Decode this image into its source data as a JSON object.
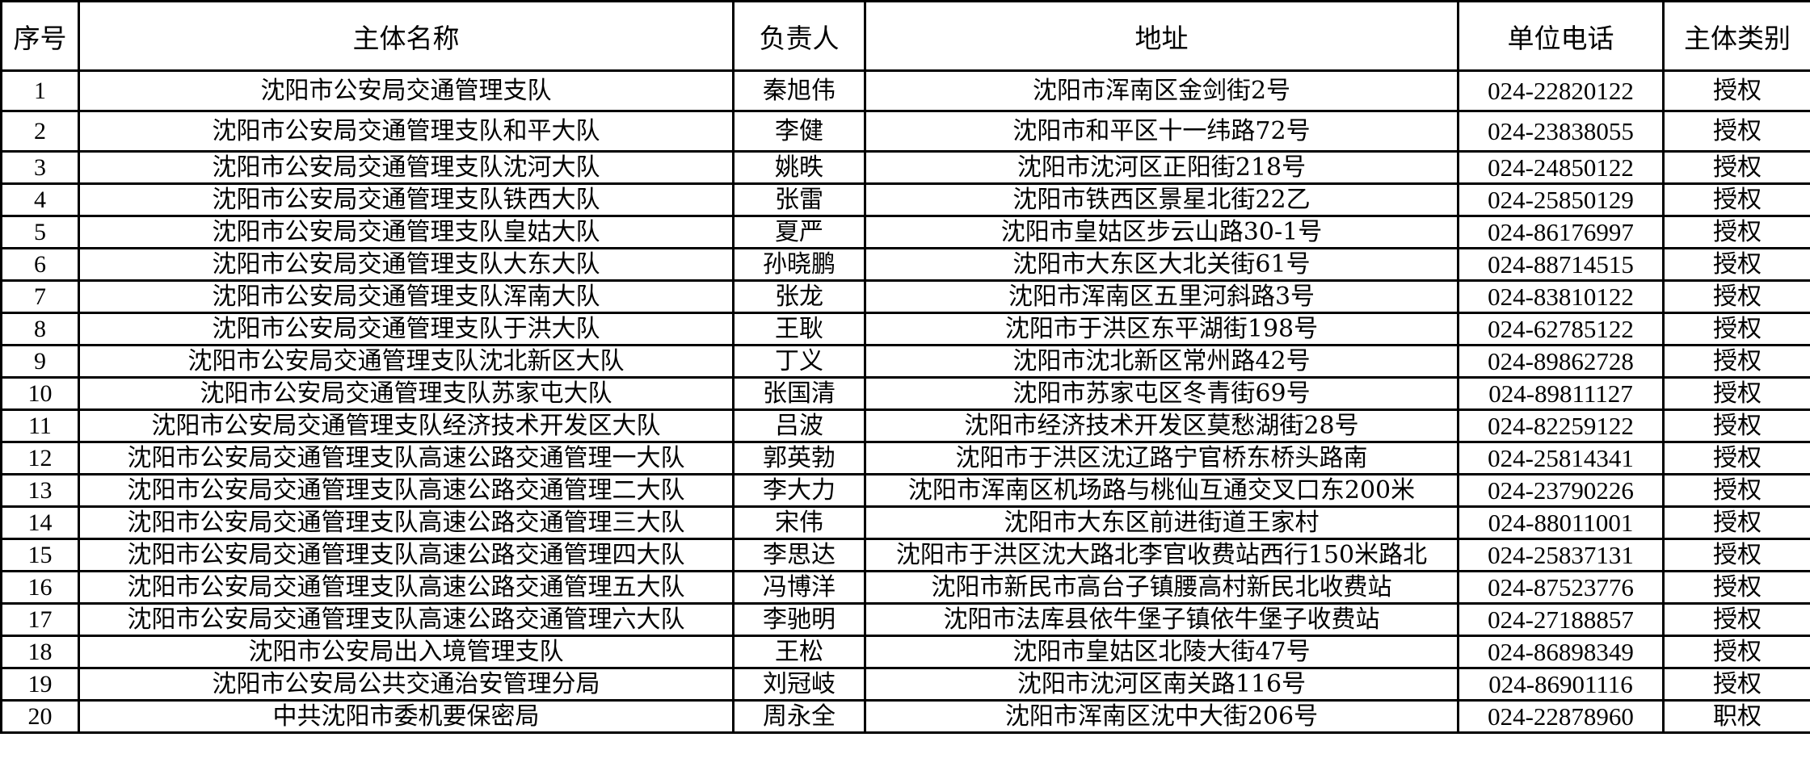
{
  "table": {
    "headers": [
      "序号",
      "主体名称",
      "负责人",
      "地址",
      "单位电话",
      "主体类别"
    ],
    "rows": [
      [
        "1",
        "沈阳市公安局交通管理支队",
        "秦旭伟",
        "沈阳市浑南区金剑街2号",
        "024-22820122",
        "授权"
      ],
      [
        "2",
        "沈阳市公安局交通管理支队和平大队",
        "李健",
        "沈阳市和平区十一纬路72号",
        "024-23838055",
        "授权"
      ],
      [
        "3",
        "沈阳市公安局交通管理支队沈河大队",
        "姚昳",
        "沈阳市沈河区正阳街218号",
        "024-24850122",
        "授权"
      ],
      [
        "4",
        "沈阳市公安局交通管理支队铁西大队",
        "张雷",
        "沈阳市铁西区景星北街22乙",
        "024-25850129",
        "授权"
      ],
      [
        "5",
        "沈阳市公安局交通管理支队皇姑大队",
        "夏严",
        "沈阳市皇姑区步云山路30-1号",
        "024-86176997",
        "授权"
      ],
      [
        "6",
        "沈阳市公安局交通管理支队大东大队",
        "孙晓鹏",
        "沈阳市大东区大北关街61号",
        "024-88714515",
        "授权"
      ],
      [
        "7",
        "沈阳市公安局交通管理支队浑南大队",
        "张龙",
        "沈阳市浑南区五里河斜路3号",
        "024-83810122",
        "授权"
      ],
      [
        "8",
        "沈阳市公安局交通管理支队于洪大队",
        "王耿",
        "沈阳市于洪区东平湖街198号",
        "024-62785122",
        "授权"
      ],
      [
        "9",
        "沈阳市公安局交通管理支队沈北新区大队",
        "丁义",
        "沈阳市沈北新区常州路42号",
        "024-89862728",
        "授权"
      ],
      [
        "10",
        "沈阳市公安局交通管理支队苏家屯大队",
        "张国清",
        "沈阳市苏家屯区冬青街69号",
        "024-89811127",
        "授权"
      ],
      [
        "11",
        "沈阳市公安局交通管理支队经济技术开发区大队",
        "吕波",
        "沈阳市经济技术开发区莫愁湖街28号",
        "024-82259122",
        "授权"
      ],
      [
        "12",
        "沈阳市公安局交通管理支队高速公路交通管理一大队",
        "郭英勃",
        "沈阳市于洪区沈辽路宁官桥东桥头路南",
        "024-25814341",
        "授权"
      ],
      [
        "13",
        "沈阳市公安局交通管理支队高速公路交通管理二大队",
        "李大力",
        "沈阳市浑南区机场路与桃仙互通交叉口东200米",
        "024-23790226",
        "授权"
      ],
      [
        "14",
        "沈阳市公安局交通管理支队高速公路交通管理三大队",
        "宋伟",
        "沈阳市大东区前进街道王家村",
        "024-88011001",
        "授权"
      ],
      [
        "15",
        "沈阳市公安局交通管理支队高速公路交通管理四大队",
        "李思达",
        "沈阳市于洪区沈大路北李官收费站西行150米路北",
        "024-25837131",
        "授权"
      ],
      [
        "16",
        "沈阳市公安局交通管理支队高速公路交通管理五大队",
        "冯博洋",
        "沈阳市新民市高台子镇腰高村新民北收费站",
        "024-87523776",
        "授权"
      ],
      [
        "17",
        "沈阳市公安局交通管理支队高速公路交通管理六大队",
        "李驰明",
        "沈阳市法库县依牛堡子镇依牛堡子收费站",
        "024-27188857",
        "授权"
      ],
      [
        "18",
        "沈阳市公安局出入境管理支队",
        "王松",
        "沈阳市皇姑区北陵大街47号",
        "024-86898349",
        "授权"
      ],
      [
        "19",
        "沈阳市公安局公共交通治安管理分局",
        "刘冠岐",
        "沈阳市沈河区南关路116号",
        "024-86901116",
        "授权"
      ],
      [
        "20",
        "中共沈阳市委机要保密局",
        "周永全",
        "沈阳市浑南区沈中大街206号",
        "024-22878960",
        "职权"
      ]
    ]
  }
}
